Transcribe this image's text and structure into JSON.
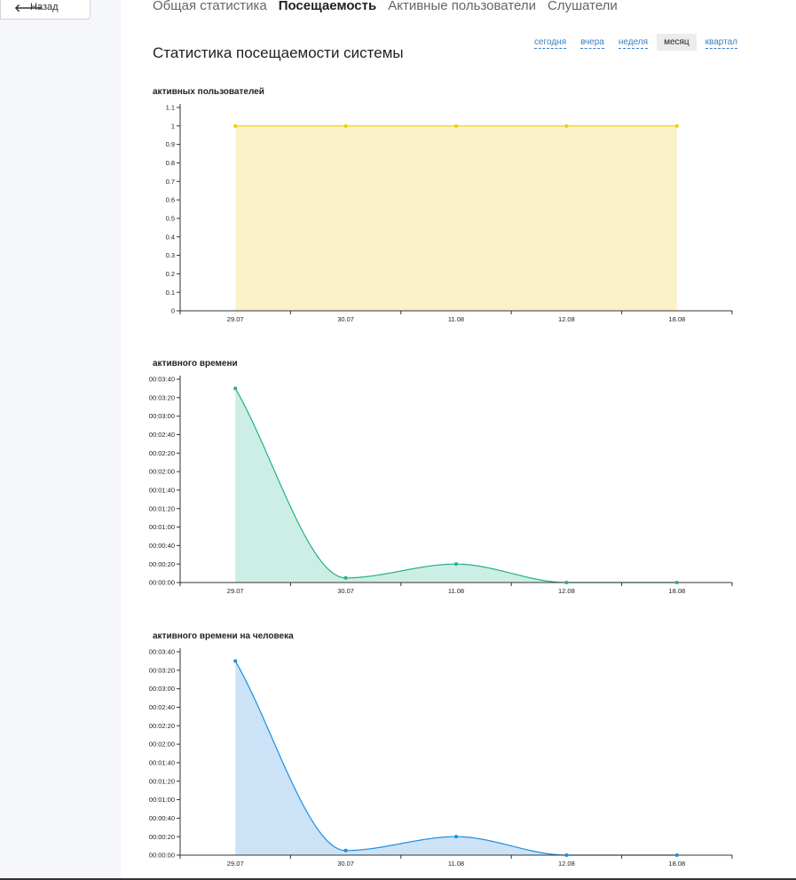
{
  "sidebar": {
    "back_label": "Назад"
  },
  "tabs": [
    "Общая статистика",
    "Посещаемость",
    "Активные пользователи",
    "Слушатели"
  ],
  "active_tab": "Посещаемость",
  "page_title": "Статистика посещаемости системы",
  "periods": [
    "сегодня",
    "вчера",
    "неделя",
    "месяц",
    "квартал"
  ],
  "active_period": "месяц",
  "colors": {
    "yellow_line": "#f0d000",
    "yellow_fill": "#faf3c8",
    "green_line": "#22b08a",
    "green_fill": "#cdeee5",
    "blue_line": "#1a8ee0",
    "blue_fill": "#cce3f7"
  },
  "chart_data": [
    {
      "type": "area",
      "title": "активных пользователей",
      "x": [
        "29.07",
        "30.07",
        "11.08",
        "12.08",
        "18.08"
      ],
      "values": [
        1,
        1,
        1,
        1,
        1
      ],
      "ylim": [
        0,
        1.1
      ],
      "yticks": [
        "0",
        "0.1",
        "0.2",
        "0.3",
        "0.4",
        "0.5",
        "0.6",
        "0.7",
        "0.8",
        "0.9",
        "1",
        "1.1"
      ],
      "color": "yellow"
    },
    {
      "type": "area",
      "title": "активного времени",
      "x": [
        "29.07",
        "30.07",
        "11.08",
        "12.08",
        "18.08"
      ],
      "values": [
        "00:03:30",
        "00:00:05",
        "00:00:20",
        "00:00:00",
        "00:00:00"
      ],
      "ylim": [
        "00:00:00",
        "00:03:40"
      ],
      "yticks": [
        "00:00:00",
        "00:00:20",
        "00:00:40",
        "00:01:00",
        "00:01:20",
        "00:01:40",
        "00:02:00",
        "00:02:20",
        "00:02:40",
        "00:03:00",
        "00:03:20",
        "00:03:40"
      ],
      "color": "green"
    },
    {
      "type": "area",
      "title": "активного времени на человека",
      "x": [
        "29.07",
        "30.07",
        "11.08",
        "12.08",
        "18.08"
      ],
      "values": [
        "00:03:30",
        "00:00:05",
        "00:00:20",
        "00:00:00",
        "00:00:00"
      ],
      "ylim": [
        "00:00:00",
        "00:03:40"
      ],
      "yticks": [
        "00:00:00",
        "00:00:20",
        "00:00:40",
        "00:01:00",
        "00:01:20",
        "00:01:40",
        "00:02:00",
        "00:02:20",
        "00:02:40",
        "00:03:00",
        "00:03:20",
        "00:03:40"
      ],
      "color": "blue"
    }
  ]
}
